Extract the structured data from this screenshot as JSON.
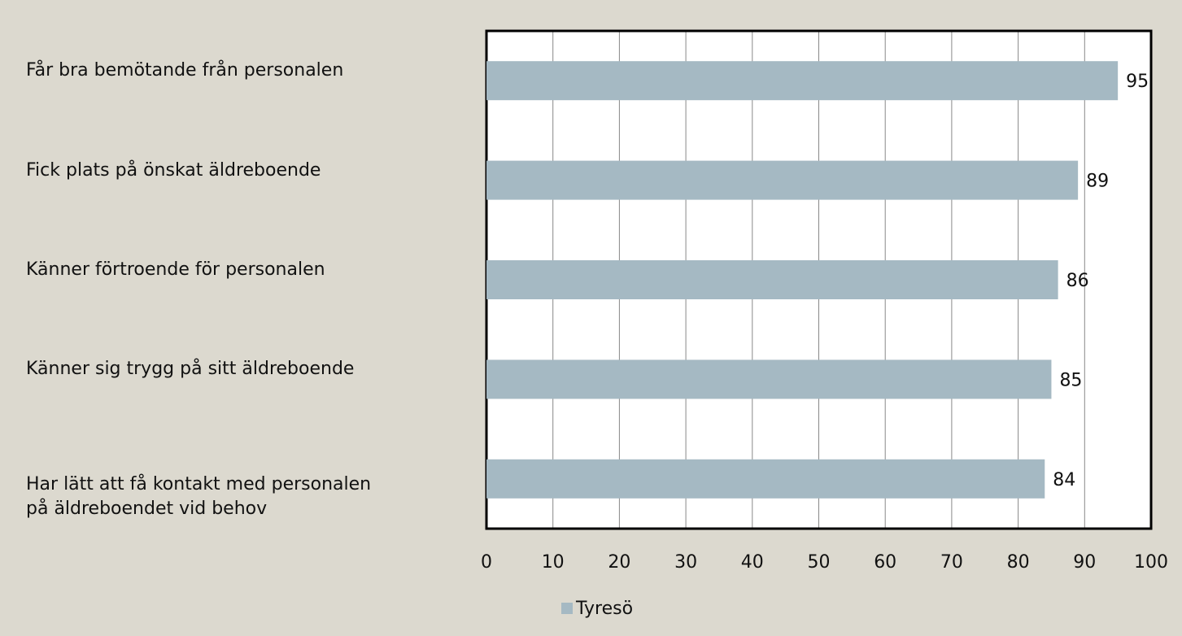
{
  "chart_data": {
    "type": "bar",
    "orientation": "horizontal",
    "categories": [
      "Får bra bemötande från personalen",
      "Fick plats på önskat äldreboende",
      "Känner förtroende för personalen",
      "Känner sig trygg på sitt äldreboende",
      "Har lätt att få kontakt med personalen\npå äldreboendet vid behov"
    ],
    "series": [
      {
        "name": "Tyresö",
        "color": "#a5b9c3",
        "values": [
          95,
          89,
          86,
          85,
          84
        ]
      }
    ],
    "xlim": [
      0,
      100
    ],
    "xticks": [
      0,
      10,
      20,
      30,
      40,
      50,
      60,
      70,
      80,
      90,
      100
    ],
    "grid": true,
    "legend": "bottom"
  }
}
